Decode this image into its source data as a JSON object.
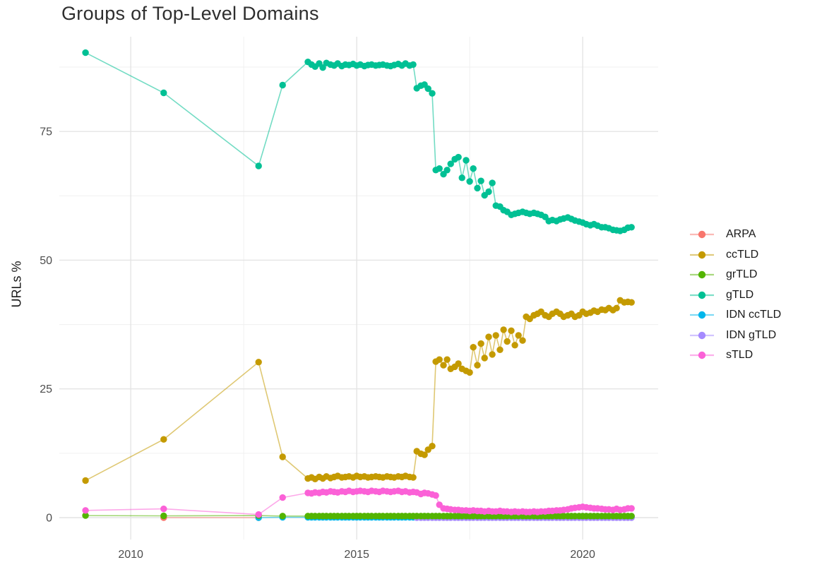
{
  "chart_data": {
    "type": "line",
    "title": "Groups of Top-Level Domains",
    "xlabel": "",
    "ylabel": "URLs %",
    "grid": true,
    "legend_position": "right",
    "x_axis": {
      "ticks": [
        2010,
        2015,
        2020
      ],
      "minor_ticks": [
        2012.5,
        2017.5
      ],
      "range": [
        2008.42,
        2021.67
      ]
    },
    "y_axis": {
      "ticks": [
        0,
        25,
        50,
        75
      ],
      "minor_ticks": [
        12.5,
        37.5,
        62.5,
        87.5
      ],
      "range": [
        -4.25,
        93.4
      ]
    },
    "colors": {
      "ARPA": "#F8766D",
      "ccTLD": "#C49A00",
      "grTLD": "#53B400",
      "gTLD": "#00C094",
      "IDN ccTLD": "#00B6EB",
      "IDN gTLD": "#A58AFF",
      "sTLD": "#FB61D7"
    },
    "x_monthly": [
      2013.92,
      2014.0,
      2014.08,
      2014.17,
      2014.25,
      2014.33,
      2014.42,
      2014.5,
      2014.58,
      2014.67,
      2014.75,
      2014.83,
      2014.92,
      2015.0,
      2015.08,
      2015.17,
      2015.25,
      2015.33,
      2015.42,
      2015.5,
      2015.58,
      2015.67,
      2015.75,
      2015.83,
      2015.92,
      2016.0,
      2016.08,
      2016.17,
      2016.25,
      2016.33,
      2016.42,
      2016.5,
      2016.58,
      2016.67,
      2016.75,
      2016.83,
      2016.92,
      2017.0,
      2017.08,
      2017.17,
      2017.25,
      2017.33,
      2017.42,
      2017.5,
      2017.58,
      2017.67,
      2017.75,
      2017.83,
      2017.92,
      2018.0,
      2018.08,
      2018.17,
      2018.25,
      2018.33,
      2018.42,
      2018.5,
      2018.58,
      2018.67,
      2018.75,
      2018.83,
      2018.92,
      2019.0,
      2019.08,
      2019.17,
      2019.25,
      2019.33,
      2019.42,
      2019.5,
      2019.58,
      2019.67,
      2019.75,
      2019.83,
      2019.92,
      2020.0,
      2020.08,
      2020.17,
      2020.25,
      2020.33,
      2020.42,
      2020.5,
      2020.58,
      2020.67,
      2020.75,
      2020.83,
      2020.92,
      2021.0,
      2021.08
    ],
    "series": [
      {
        "name": "ARPA",
        "color": "#F8766D",
        "points_pre": {
          "x": [
            2010.73,
            2012.83
          ],
          "y": [
            0.0,
            0.0
          ]
        },
        "monthly_start_index": 0,
        "monthly_y": []
      },
      {
        "name": "ccTLD",
        "color": "#C49A00",
        "points_pre": {
          "x": [
            2009.0,
            2010.73,
            2012.83,
            2013.36
          ],
          "y": [
            7.2,
            15.2,
            30.2,
            11.8
          ]
        },
        "monthly_start_index": 0,
        "monthly_y": [
          7.6,
          7.8,
          7.5,
          7.9,
          7.6,
          8.0,
          7.7,
          7.9,
          8.1,
          7.8,
          7.9,
          8.0,
          7.8,
          8.1,
          7.9,
          8.0,
          7.8,
          7.9,
          8.0,
          7.9,
          7.8,
          8.0,
          7.9,
          7.8,
          8.0,
          7.9,
          8.1,
          7.9,
          7.8,
          12.9,
          12.4,
          12.2,
          13.2,
          13.9,
          30.3,
          30.7,
          29.6,
          30.7,
          28.9,
          29.3,
          29.9,
          28.9,
          28.5,
          28.2,
          33.1,
          29.6,
          33.8,
          31.0,
          35.1,
          31.7,
          35.4,
          32.6,
          36.5,
          34.2,
          36.3,
          33.5,
          35.4,
          34.4,
          39.0,
          38.6,
          39.3,
          39.6,
          40.0,
          39.3,
          39.0,
          39.6,
          40.0,
          39.6,
          39.0,
          39.3,
          39.6,
          39.0,
          39.3,
          40.0,
          39.6,
          39.8,
          40.2,
          40.0,
          40.4,
          40.3,
          40.7,
          40.3,
          40.7,
          42.2,
          41.8,
          41.9,
          41.8
        ]
      },
      {
        "name": "grTLD",
        "color": "#53B400",
        "points_pre": {
          "x": [
            2009.0,
            2010.73,
            2012.83,
            2013.36
          ],
          "y": [
            0.4,
            0.35,
            0.4,
            0.3
          ]
        },
        "monthly_start_index": 0,
        "monthly_y": [
          0.3,
          0.3,
          0.3,
          0.3,
          0.3,
          0.3,
          0.3,
          0.3,
          0.3,
          0.3,
          0.3,
          0.3,
          0.3,
          0.3,
          0.3,
          0.3,
          0.3,
          0.3,
          0.3,
          0.3,
          0.3,
          0.3,
          0.3,
          0.3,
          0.3,
          0.3,
          0.3,
          0.3,
          0.3,
          0.3,
          0.3,
          0.3,
          0.3,
          0.3,
          0.3,
          0.3,
          0.3,
          0.3,
          0.3,
          0.3,
          0.3,
          0.3,
          0.3,
          0.3,
          0.3,
          0.3,
          0.3,
          0.3,
          0.3,
          0.3,
          0.3,
          0.3,
          0.3,
          0.3,
          0.3,
          0.3,
          0.3,
          0.3,
          0.3,
          0.3,
          0.3,
          0.3,
          0.3,
          0.3,
          0.3,
          0.3,
          0.3,
          0.3,
          0.3,
          0.3,
          0.3,
          0.3,
          0.3,
          0.3,
          0.3,
          0.3,
          0.3,
          0.3,
          0.3,
          0.3,
          0.3,
          0.3,
          0.3,
          0.3,
          0.3,
          0.3,
          0.3
        ]
      },
      {
        "name": "gTLD",
        "color": "#00C094",
        "points_pre": {
          "x": [
            2009.0,
            2010.73,
            2012.83,
            2013.36
          ],
          "y": [
            90.3,
            82.5,
            68.3,
            84.0
          ]
        },
        "monthly_start_index": 0,
        "monthly_y": [
          88.5,
          88.0,
          87.6,
          88.2,
          87.4,
          88.3,
          88.0,
          87.8,
          88.2,
          87.7,
          88.0,
          87.9,
          88.1,
          87.8,
          88.0,
          87.7,
          87.9,
          88.0,
          87.8,
          87.9,
          88.0,
          87.8,
          87.7,
          87.9,
          88.1,
          87.8,
          88.2,
          87.8,
          88.0,
          83.4,
          83.9,
          84.1,
          83.3,
          82.4,
          67.5,
          67.8,
          66.7,
          67.5,
          68.7,
          69.6,
          70.0,
          66.0,
          69.4,
          65.3,
          67.8,
          64.0,
          65.4,
          62.6,
          63.3,
          65.0,
          60.6,
          60.4,
          59.7,
          59.4,
          58.8,
          59.0,
          59.2,
          59.4,
          59.2,
          59.0,
          59.2,
          59.0,
          58.8,
          58.4,
          57.6,
          57.8,
          57.6,
          57.9,
          58.1,
          58.3,
          58.0,
          57.7,
          57.5,
          57.3,
          57.0,
          56.8,
          57.0,
          56.7,
          56.4,
          56.4,
          56.2,
          55.9,
          55.8,
          55.7,
          55.9,
          56.3,
          56.4
        ]
      },
      {
        "name": "IDN ccTLD",
        "color": "#00B6EB",
        "points_pre": {
          "x": [
            2012.83,
            2013.36
          ],
          "y": [
            0.0,
            0.05
          ]
        },
        "monthly_start_index": 0,
        "monthly_y": [
          0.05,
          0.05,
          0.05,
          0.05,
          0.05,
          0.05,
          0.05,
          0.05,
          0.05,
          0.05,
          0.05,
          0.05,
          0.05,
          0.05,
          0.05,
          0.05,
          0.05,
          0.05,
          0.05,
          0.05,
          0.05,
          0.05,
          0.05,
          0.05,
          0.05,
          0.05,
          0.05,
          0.05,
          0.05,
          0.05,
          0.05,
          0.05,
          0.05,
          0.05,
          0.05,
          0.05,
          0.05,
          0.05,
          0.05,
          0.05,
          0.05,
          0.05,
          0.05,
          0.05,
          0.05,
          0.05,
          0.05,
          0.05,
          0.05,
          0.05,
          0.05,
          0.05,
          0.05,
          0.05,
          0.05,
          0.05,
          0.05,
          0.05,
          0.05,
          0.05,
          0.05,
          0.05,
          0.05,
          0.05,
          0.05,
          0.05,
          0.05,
          0.05,
          0.05,
          0.05,
          0.05,
          0.05,
          0.05,
          0.05,
          0.05,
          0.05,
          0.05,
          0.05,
          0.05,
          0.05,
          0.05,
          0.05,
          0.05,
          0.05,
          0.05,
          0.05,
          0.05
        ]
      },
      {
        "name": "IDN gTLD",
        "color": "#A58AFF",
        "points_pre": null,
        "monthly_start_index": 29,
        "monthly_y": [
          0.0,
          0.0,
          0.0,
          0.0,
          0.0,
          0.0,
          0.0,
          0.0,
          0.0,
          0.0,
          0.0,
          0.0,
          0.0,
          0.0,
          0.0,
          0.0,
          0.0,
          0.0,
          0.0,
          0.0,
          0.0,
          0.0,
          0.0,
          0.0,
          0.0,
          0.0,
          0.0,
          0.0,
          0.0,
          0.0,
          0.0,
          0.0,
          0.0,
          0.0,
          0.0,
          0.0,
          0.0,
          0.0,
          0.0,
          0.0,
          0.0,
          0.0,
          0.0,
          0.0,
          0.0,
          0.0,
          0.0,
          0.0,
          0.0,
          0.0,
          0.0,
          0.0,
          0.0,
          0.0,
          0.0,
          0.0,
          0.0,
          0.0
        ]
      },
      {
        "name": "sTLD",
        "color": "#FB61D7",
        "points_pre": {
          "x": [
            2009.0,
            2010.73,
            2012.83,
            2013.36
          ],
          "y": [
            1.4,
            1.7,
            0.6,
            3.9
          ]
        },
        "monthly_start_index": 0,
        "monthly_y": [
          4.8,
          4.7,
          4.9,
          4.8,
          5.0,
          4.9,
          5.1,
          5.0,
          4.9,
          5.1,
          5.0,
          5.2,
          5.0,
          5.1,
          5.2,
          5.1,
          5.0,
          5.2,
          5.1,
          5.0,
          5.2,
          5.1,
          5.0,
          5.1,
          5.2,
          5.0,
          5.1,
          4.9,
          5.0,
          4.9,
          4.6,
          4.8,
          4.7,
          4.5,
          4.3,
          2.5,
          1.8,
          1.7,
          1.6,
          1.5,
          1.5,
          1.4,
          1.4,
          1.3,
          1.4,
          1.3,
          1.3,
          1.2,
          1.3,
          1.2,
          1.2,
          1.3,
          1.2,
          1.2,
          1.1,
          1.2,
          1.1,
          1.2,
          1.1,
          1.1,
          1.2,
          1.1,
          1.2,
          1.2,
          1.3,
          1.3,
          1.4,
          1.4,
          1.5,
          1.6,
          1.8,
          1.9,
          2.0,
          2.1,
          2.0,
          1.9,
          1.8,
          1.8,
          1.7,
          1.6,
          1.6,
          1.5,
          1.7,
          1.5,
          1.6,
          1.8,
          1.8
        ]
      }
    ],
    "legend": {
      "items": [
        {
          "label": "ARPA",
          "color": "#F8766D"
        },
        {
          "label": "ccTLD",
          "color": "#C49A00"
        },
        {
          "label": "grTLD",
          "color": "#53B400"
        },
        {
          "label": "gTLD",
          "color": "#00C094"
        },
        {
          "label": "IDN ccTLD",
          "color": "#00B6EB"
        },
        {
          "label": "IDN gTLD",
          "color": "#A58AFF"
        },
        {
          "label": "sTLD",
          "color": "#FB61D7"
        }
      ]
    },
    "draw_order": [
      "ARPA",
      "IDN ccTLD",
      "IDN gTLD",
      "grTLD",
      "sTLD",
      "ccTLD",
      "gTLD"
    ]
  }
}
